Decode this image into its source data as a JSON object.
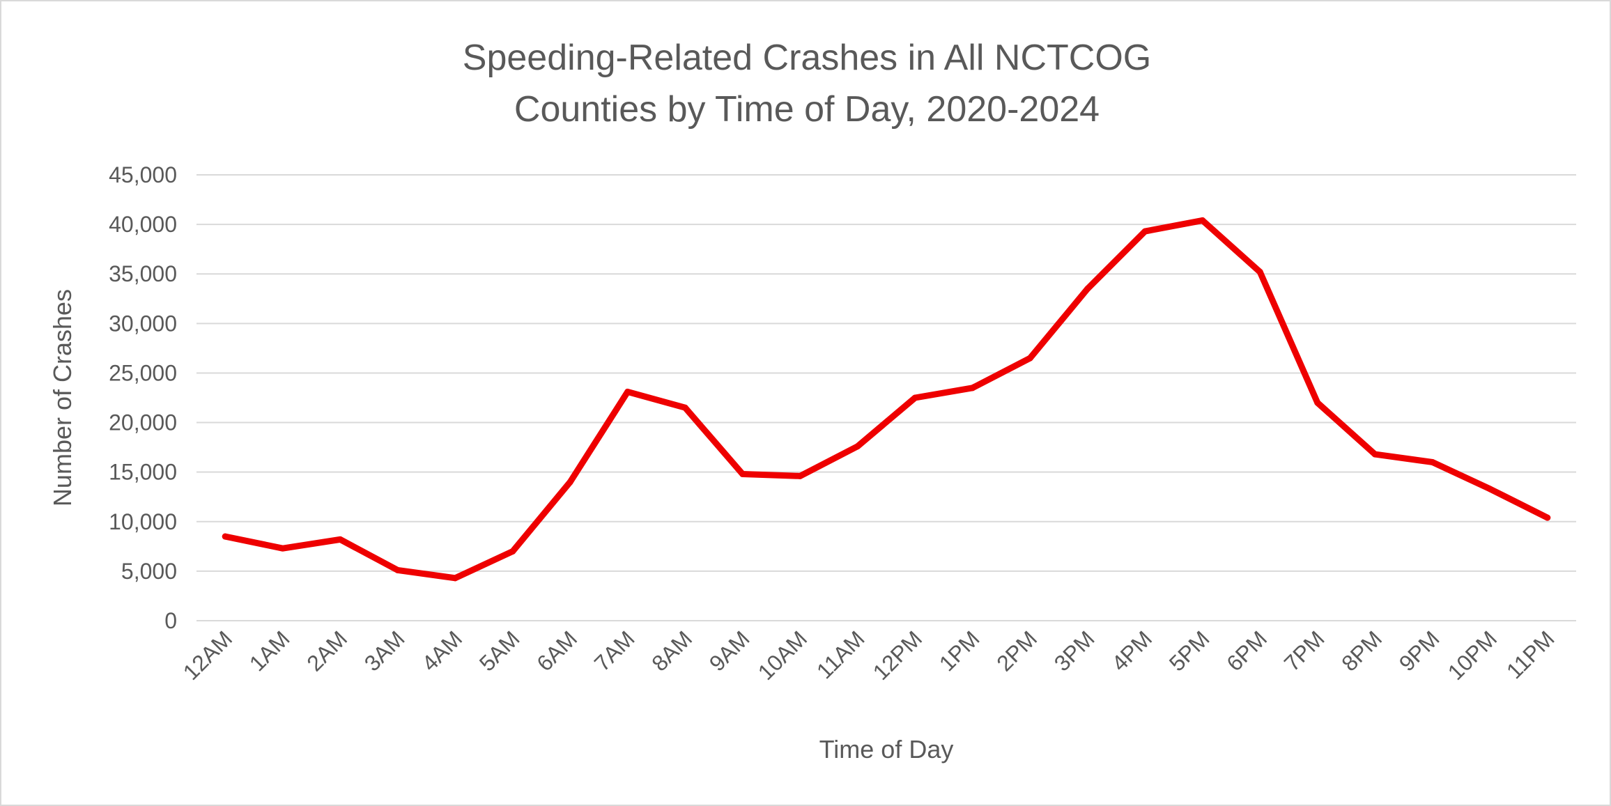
{
  "chart_data": {
    "type": "line",
    "title": [
      "Speeding-Related Crashes in All NCTCOG",
      "Counties by Time of Day, 2020-2024"
    ],
    "xlabel": "Time of Day",
    "ylabel": "Number of Crashes",
    "categories": [
      "12AM",
      "1AM",
      "2AM",
      "3AM",
      "4AM",
      "5AM",
      "6AM",
      "7AM",
      "8AM",
      "9AM",
      "10AM",
      "11AM",
      "12PM",
      "1PM",
      "2PM",
      "3PM",
      "4PM",
      "5PM",
      "6PM",
      "7PM",
      "8PM",
      "9PM",
      "10PM",
      "11PM"
    ],
    "series": [
      {
        "values": [
          8500,
          7300,
          8200,
          5100,
          4300,
          7000,
          14000,
          23100,
          21500,
          14800,
          14600,
          17600,
          22500,
          23500,
          26500,
          33500,
          39300,
          40400,
          35200,
          22000,
          16800,
          16000,
          13300,
          10400
        ],
        "color": "#ee0000"
      }
    ],
    "ylim": [
      0,
      45000
    ],
    "yticks": [
      0,
      5000,
      10000,
      15000,
      20000,
      25000,
      30000,
      35000,
      40000,
      45000
    ],
    "ytick_labels": [
      "0",
      "5,000",
      "10,000",
      "15,000",
      "20,000",
      "25,000",
      "30,000",
      "35,000",
      "40,000",
      "45,000"
    ],
    "grid": true,
    "legend": "none"
  }
}
